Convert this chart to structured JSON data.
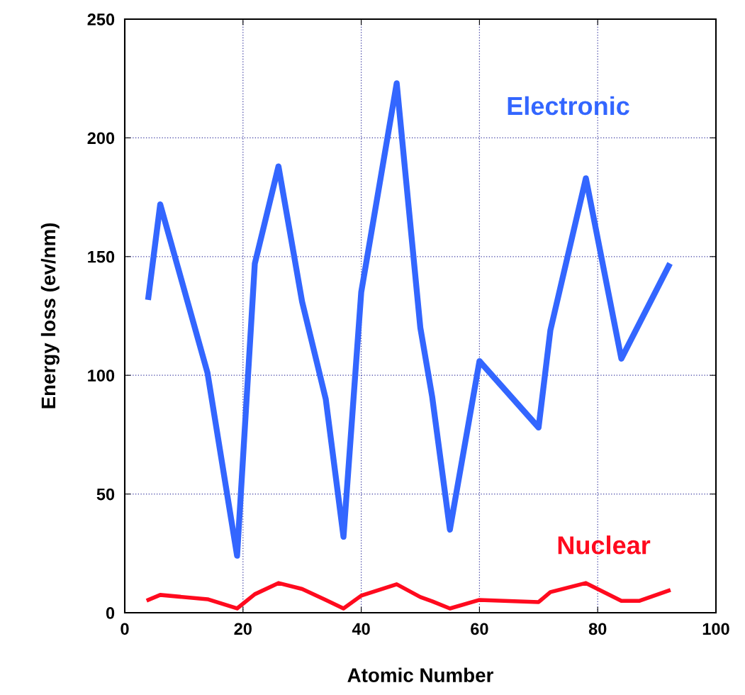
{
  "chart_data": {
    "type": "line",
    "xlabel": "Atomic Number",
    "ylabel": "Energy loss (ev/nm)",
    "xlim": [
      0,
      100
    ],
    "xticks": [
      0,
      20,
      40,
      60,
      80,
      100
    ],
    "ylim": [
      0,
      250
    ],
    "yticks": [
      0,
      50,
      100,
      150,
      200,
      250
    ],
    "grid": true,
    "legend": false,
    "marker": "none",
    "line_style": "solid",
    "series": [
      {
        "name": "Electronic",
        "color": "#3366ff",
        "x": [
          4,
          6,
          14,
          19,
          22,
          26,
          30,
          34,
          37,
          40,
          46,
          50,
          52,
          55,
          60,
          70,
          72,
          78,
          84,
          92
        ],
        "values": [
          133,
          172,
          101,
          24,
          147,
          188,
          131,
          90,
          32,
          135,
          223,
          120,
          91,
          35,
          106,
          78,
          119,
          183,
          107,
          146
        ]
      },
      {
        "name": "Nuclear",
        "color": "#ff0a1e",
        "x": [
          4,
          6,
          14,
          19,
          22,
          26,
          30,
          34,
          37,
          40,
          46,
          50,
          52,
          55,
          60,
          70,
          72,
          78,
          84,
          87,
          92
        ],
        "values": [
          5.4,
          7.5,
          5.7,
          1.8,
          7.8,
          12.5,
          10,
          5.4,
          1.8,
          7.2,
          12,
          6.6,
          4.8,
          1.8,
          5.4,
          4.5,
          8.7,
          12.5,
          5,
          5,
          9.3
        ]
      }
    ]
  }
}
